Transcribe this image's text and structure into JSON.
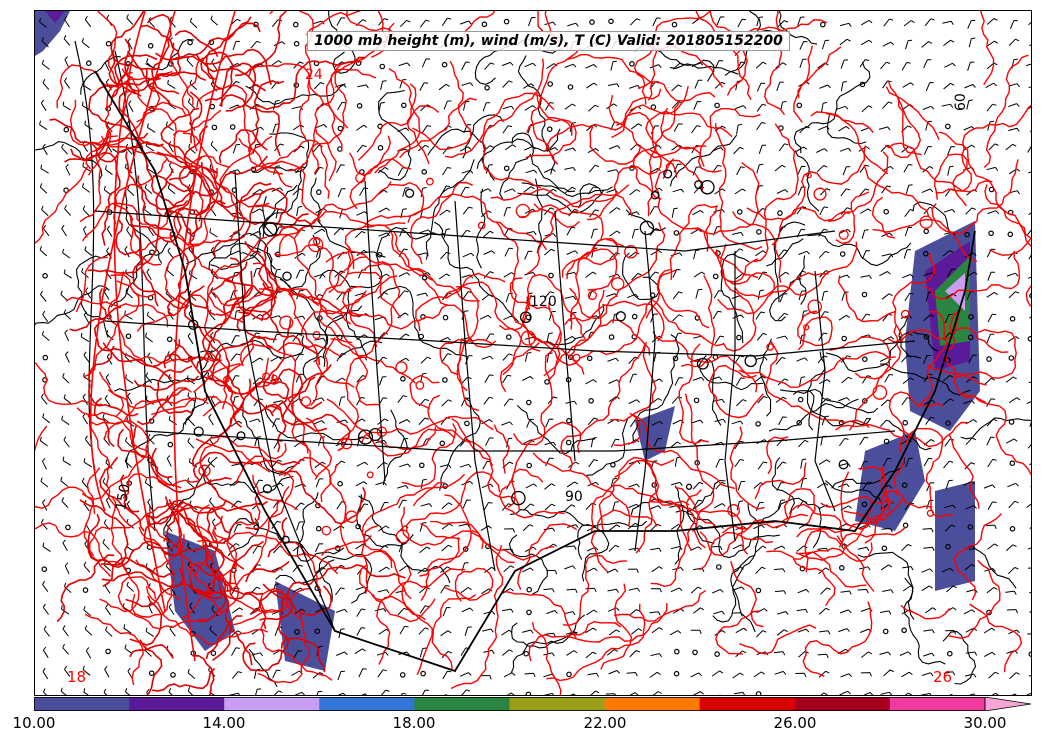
{
  "title": "1000 mb height (m), wind (m/s), T (C) Valid: 201805152200",
  "map": {
    "region": "continental-us",
    "layers": [
      "wind-barbs",
      "height-contours-black",
      "temperature-contours-red",
      "wind-speed-shaded"
    ],
    "contour_labels": [
      {
        "text": "120",
        "color": "#000000"
      },
      {
        "text": "90",
        "color": "#000000"
      },
      {
        "text": "60",
        "color": "#000000"
      },
      {
        "text": "150",
        "color": "#000000"
      },
      {
        "text": "18",
        "color": "#ff0000"
      },
      {
        "text": "26",
        "color": "#ff0000"
      },
      {
        "text": "24",
        "color": "#ff0000"
      }
    ]
  },
  "colorbar": {
    "ticks": [
      "10.00",
      "14.00",
      "18.00",
      "22.00",
      "26.00",
      "30.00"
    ],
    "colors": [
      "#4b4e9a",
      "#5a1a9a",
      "#c99df2",
      "#3575d9",
      "#2a8540",
      "#9aa017",
      "#ff7a00",
      "#d90000",
      "#a5001c",
      "#f03aa0"
    ],
    "extend_color": "#f6a6d6"
  }
}
